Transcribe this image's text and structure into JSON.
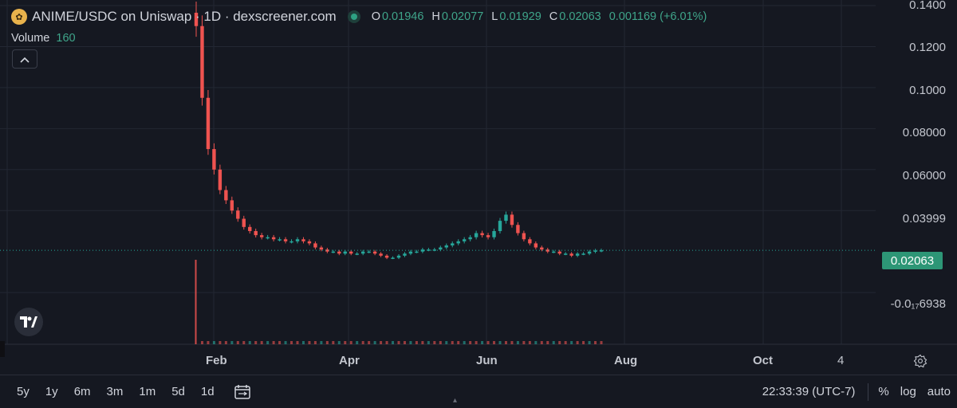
{
  "legend": {
    "title": "ANIME/USDC on Uniswap · 1D · dexscreener.com",
    "ohlc": [
      {
        "k": "O",
        "v": "0.01946"
      },
      {
        "k": "H",
        "v": "0.02077"
      },
      {
        "k": "L",
        "v": "0.01929"
      },
      {
        "k": "C",
        "v": "0.02063"
      }
    ],
    "change": "0.001169 (+6.01%)",
    "volume_label": "Volume",
    "volume_value": "160"
  },
  "y_axis": [
    "0.1400",
    "0.1200",
    "0.1000",
    "0.08000",
    "0.06000",
    "0.03999",
    "-0.0₁₇6938"
  ],
  "last_price": "0.02063",
  "x_axis": {
    "months": [
      "Feb",
      "Apr",
      "Jun",
      "Aug",
      "Oct"
    ],
    "extra": "4"
  },
  "range_buttons": [
    "5y",
    "1y",
    "6m",
    "3m",
    "1m",
    "5d",
    "1d"
  ],
  "time": "22:33:39 (UTC-7)",
  "options": [
    "%",
    "log",
    "auto"
  ],
  "colors": {
    "background": "#151821",
    "up": "#26a69a",
    "down": "#ef5350",
    "price_tag": "#2d9676",
    "grid": "#232733"
  },
  "icons": [
    "gear-icon",
    "tradingview-logo",
    "date-range-icon",
    "chevron-up-icon"
  ],
  "chart_data": {
    "type": "candlestick",
    "pair": "ANIME/USDC",
    "interval": "1D",
    "ylim": [
      -0.005,
      0.14
    ],
    "x_ticks": [
      "Feb",
      "Apr",
      "Jun",
      "Aug",
      "Oct"
    ],
    "series": [
      {
        "name": "close",
        "values": [
          0.13,
          0.095,
          0.07,
          0.06,
          0.05,
          0.045,
          0.04,
          0.036,
          0.032,
          0.03,
          0.028,
          0.027,
          0.027,
          0.026,
          0.026,
          0.025,
          0.025,
          0.026,
          0.025,
          0.024,
          0.022,
          0.021,
          0.02,
          0.02,
          0.019,
          0.02,
          0.019,
          0.019,
          0.02,
          0.02,
          0.019,
          0.018,
          0.017,
          0.017,
          0.018,
          0.019,
          0.02,
          0.02,
          0.021,
          0.021,
          0.021,
          0.022,
          0.023,
          0.024,
          0.025,
          0.026,
          0.027,
          0.029,
          0.028,
          0.027,
          0.03,
          0.035,
          0.038,
          0.033,
          0.029,
          0.026,
          0.024,
          0.022,
          0.021,
          0.02,
          0.02,
          0.019,
          0.019,
          0.018,
          0.019,
          0.019,
          0.02,
          0.0205,
          0.02063
        ]
      }
    ]
  }
}
